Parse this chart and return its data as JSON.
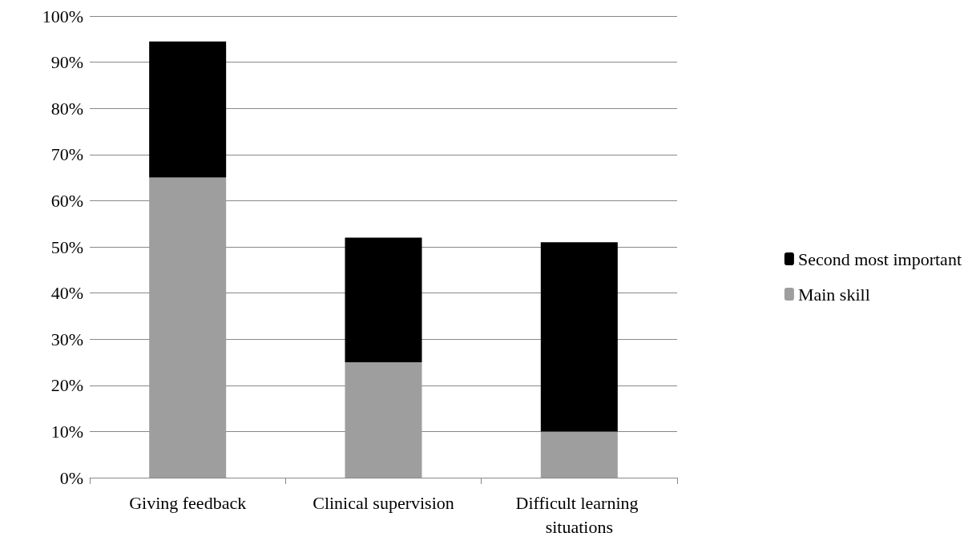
{
  "chart_data": {
    "type": "bar",
    "stacked": true,
    "categories": [
      "Giving feedback",
      "Clinical supervision",
      "Difficult learning situations"
    ],
    "series": [
      {
        "name": "Main skill",
        "color": "#9e9e9e",
        "values": [
          65,
          25,
          10
        ]
      },
      {
        "name": "Second most important",
        "color": "#000000",
        "values": [
          29.5,
          27,
          41
        ]
      }
    ],
    "ylim": [
      0,
      100
    ],
    "yticks": [
      {
        "value": 0,
        "label": "0%"
      },
      {
        "value": 10,
        "label": "10%"
      },
      {
        "value": 20,
        "label": "20%"
      },
      {
        "value": 30,
        "label": "30%"
      },
      {
        "value": 40,
        "label": "40%"
      },
      {
        "value": 50,
        "label": "50%"
      },
      {
        "value": 60,
        "label": "60%"
      },
      {
        "value": 70,
        "label": "70%"
      },
      {
        "value": 80,
        "label": "80%"
      },
      {
        "value": 90,
        "label": "90%"
      },
      {
        "value": 100,
        "label": "100%"
      }
    ],
    "grid": "y",
    "legend": "right"
  }
}
